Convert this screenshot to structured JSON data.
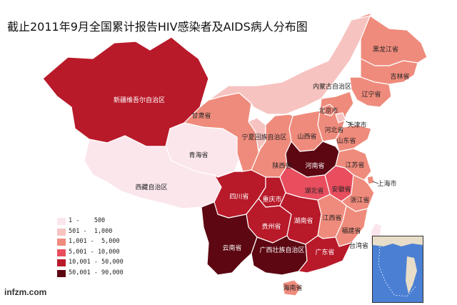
{
  "title": "截止2011年9月全国累计报告HIV感染者及AIDS病人分布图",
  "watermark": "infzm.com",
  "legend": [
    {
      "range": "1 -    500",
      "color": "#fbe6ec"
    },
    {
      "range": "501 -  1,000",
      "color": "#f6c3c0"
    },
    {
      "range": "1,001 -  5,000",
      "color": "#ef8b7c"
    },
    {
      "range": "5,001 - 10,000",
      "color": "#e84e5e"
    },
    {
      "range": "10,001 - 50,000",
      "color": "#b81a2a"
    },
    {
      "range": "50,001 - 90,000",
      "color": "#5c0712"
    }
  ],
  "provinces": [
    {
      "key": "xinjiang",
      "name": "新疆维吾尔自治区",
      "bin": 4
    },
    {
      "key": "xizang",
      "name": "西藏自治区",
      "bin": 0
    },
    {
      "key": "qinghai",
      "name": "青海省",
      "bin": 0
    },
    {
      "key": "gansu",
      "name": "甘肃省",
      "bin": 2
    },
    {
      "key": "neimenggu",
      "name": "内蒙古自治区",
      "bin": 1
    },
    {
      "key": "heilongjiang",
      "name": "黑龙江省",
      "bin": 2
    },
    {
      "key": "jilin",
      "name": "吉林省",
      "bin": 2
    },
    {
      "key": "liaoning",
      "name": "辽宁省",
      "bin": 2
    },
    {
      "key": "beijing",
      "name": "北京市",
      "bin": 2
    },
    {
      "key": "tianjin",
      "name": "天津市",
      "bin": 1
    },
    {
      "key": "hebei",
      "name": "河北省",
      "bin": 2
    },
    {
      "key": "shanxi",
      "name": "山西省",
      "bin": 2
    },
    {
      "key": "shandong",
      "name": "山东省",
      "bin": 2
    },
    {
      "key": "ningxia",
      "name": "宁夏回族自治区",
      "bin": 1
    },
    {
      "key": "shaanxi",
      "name": "陕西省",
      "bin": 2
    },
    {
      "key": "henan",
      "name": "河南省",
      "bin": 5
    },
    {
      "key": "jiangsu",
      "name": "江苏省",
      "bin": 2
    },
    {
      "key": "shanghai",
      "name": "上海市",
      "bin": 2
    },
    {
      "key": "anhui",
      "name": "安徽省",
      "bin": 3
    },
    {
      "key": "hubei",
      "name": "湖北省",
      "bin": 3
    },
    {
      "key": "zhejiang",
      "name": "浙江省",
      "bin": 2
    },
    {
      "key": "sichuan",
      "name": "四川省",
      "bin": 4
    },
    {
      "key": "chongqing",
      "name": "重庆市",
      "bin": 4
    },
    {
      "key": "hunan",
      "name": "湖南省",
      "bin": 4
    },
    {
      "key": "jiangxi",
      "name": "江西省",
      "bin": 2
    },
    {
      "key": "fujian",
      "name": "福建省",
      "bin": 2
    },
    {
      "key": "guizhou",
      "name": "贵州省",
      "bin": 4
    },
    {
      "key": "yunnan",
      "name": "云南省",
      "bin": 5
    },
    {
      "key": "guangxi",
      "name": "广西壮族自治区",
      "bin": 5
    },
    {
      "key": "guangdong",
      "name": "广东省",
      "bin": 4
    },
    {
      "key": "hainan",
      "name": "海南省",
      "bin": 2
    },
    {
      "key": "taiwan",
      "name": "台湾省",
      "bin": 0
    }
  ]
}
